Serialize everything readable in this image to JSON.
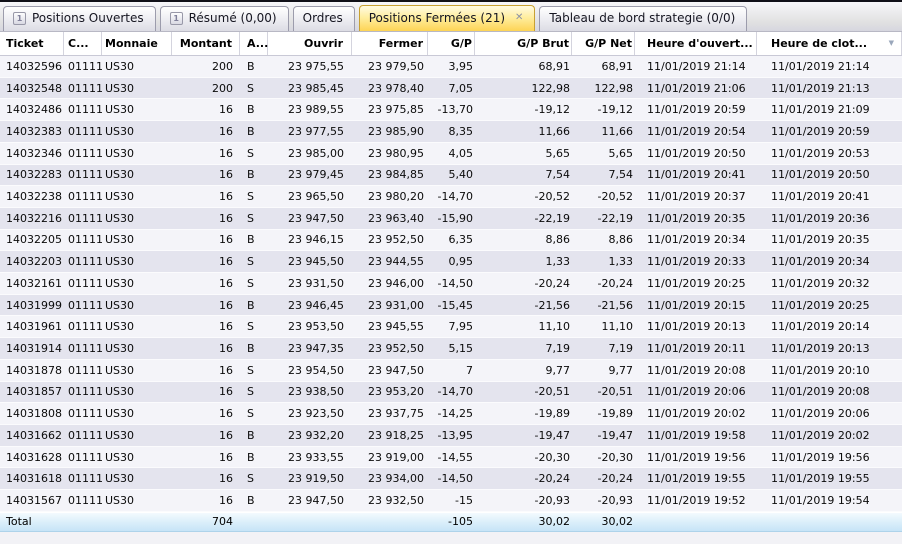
{
  "colors": {
    "active_tab": "#fdd455",
    "row_alt": "#e4e4ee",
    "total_row": "#c7e4f7",
    "top_strip": "#101018"
  },
  "tabs": [
    {
      "label": "Positions Ouvertes"
    },
    {
      "label": "Résumé (0,00)"
    },
    {
      "label": "Ordres"
    },
    {
      "label": "Positions Fermées (21)",
      "close": "✕"
    },
    {
      "label": "Tableau de bord strategie (0/0)"
    }
  ],
  "sort_icon": "▼",
  "tab_icon_glyph": "1",
  "table": {
    "columns": [
      {
        "key": "ticket",
        "label": "Ticket",
        "align": "left"
      },
      {
        "key": "compte",
        "label": "C...",
        "align": "left"
      },
      {
        "key": "monnaie",
        "label": "Monnaie",
        "align": "left"
      },
      {
        "key": "montant",
        "label": "Montant",
        "align": "right"
      },
      {
        "key": "achat_vente",
        "label": "A...",
        "align": "left"
      },
      {
        "key": "ouvrir",
        "label": "Ouvrir",
        "align": "right"
      },
      {
        "key": "fermer",
        "label": "Fermer",
        "align": "right"
      },
      {
        "key": "gp",
        "label": "G/P",
        "align": "right"
      },
      {
        "key": "gp_brut",
        "label": "G/P Brut",
        "align": "right"
      },
      {
        "key": "gp_net",
        "label": "G/P Net",
        "align": "right"
      },
      {
        "key": "heure_ouverture",
        "label": "Heure d'ouvert...",
        "align": "left"
      },
      {
        "key": "heure_cloture",
        "label": "Heure de clot...",
        "align": "left"
      }
    ],
    "rows": [
      [
        "14032596",
        "01111",
        "US30",
        "200",
        "B",
        "23 975,55",
        "23 979,50",
        "3,95",
        "68,91",
        "68,91",
        "11/01/2019 21:14",
        "11/01/2019 21:14"
      ],
      [
        "14032548",
        "01111",
        "US30",
        "200",
        "S",
        "23 985,45",
        "23 978,40",
        "7,05",
        "122,98",
        "122,98",
        "11/01/2019 21:06",
        "11/01/2019 21:13"
      ],
      [
        "14032486",
        "01111",
        "US30",
        "16",
        "B",
        "23 989,55",
        "23 975,85",
        "-13,70",
        "-19,12",
        "-19,12",
        "11/01/2019 20:59",
        "11/01/2019 21:09"
      ],
      [
        "14032383",
        "01111",
        "US30",
        "16",
        "B",
        "23 977,55",
        "23 985,90",
        "8,35",
        "11,66",
        "11,66",
        "11/01/2019 20:54",
        "11/01/2019 20:59"
      ],
      [
        "14032346",
        "01111",
        "US30",
        "16",
        "S",
        "23 985,00",
        "23 980,95",
        "4,05",
        "5,65",
        "5,65",
        "11/01/2019 20:50",
        "11/01/2019 20:53"
      ],
      [
        "14032283",
        "01111",
        "US30",
        "16",
        "B",
        "23 979,45",
        "23 984,85",
        "5,40",
        "7,54",
        "7,54",
        "11/01/2019 20:41",
        "11/01/2019 20:50"
      ],
      [
        "14032238",
        "01111",
        "US30",
        "16",
        "S",
        "23 965,50",
        "23 980,20",
        "-14,70",
        "-20,52",
        "-20,52",
        "11/01/2019 20:37",
        "11/01/2019 20:41"
      ],
      [
        "14032216",
        "01111",
        "US30",
        "16",
        "S",
        "23 947,50",
        "23 963,40",
        "-15,90",
        "-22,19",
        "-22,19",
        "11/01/2019 20:35",
        "11/01/2019 20:36"
      ],
      [
        "14032205",
        "01111",
        "US30",
        "16",
        "B",
        "23 946,15",
        "23 952,50",
        "6,35",
        "8,86",
        "8,86",
        "11/01/2019 20:34",
        "11/01/2019 20:35"
      ],
      [
        "14032203",
        "01111",
        "US30",
        "16",
        "S",
        "23 945,50",
        "23 944,55",
        "0,95",
        "1,33",
        "1,33",
        "11/01/2019 20:33",
        "11/01/2019 20:34"
      ],
      [
        "14032161",
        "01111",
        "US30",
        "16",
        "S",
        "23 931,50",
        "23 946,00",
        "-14,50",
        "-20,24",
        "-20,24",
        "11/01/2019 20:25",
        "11/01/2019 20:32"
      ],
      [
        "14031999",
        "01111",
        "US30",
        "16",
        "B",
        "23 946,45",
        "23 931,00",
        "-15,45",
        "-21,56",
        "-21,56",
        "11/01/2019 20:15",
        "11/01/2019 20:25"
      ],
      [
        "14031961",
        "01111",
        "US30",
        "16",
        "S",
        "23 953,50",
        "23 945,55",
        "7,95",
        "11,10",
        "11,10",
        "11/01/2019 20:13",
        "11/01/2019 20:14"
      ],
      [
        "14031914",
        "01111",
        "US30",
        "16",
        "B",
        "23 947,35",
        "23 952,50",
        "5,15",
        "7,19",
        "7,19",
        "11/01/2019 20:11",
        "11/01/2019 20:13"
      ],
      [
        "14031878",
        "01111",
        "US30",
        "16",
        "S",
        "23 954,50",
        "23 947,50",
        "7",
        "9,77",
        "9,77",
        "11/01/2019 20:08",
        "11/01/2019 20:10"
      ],
      [
        "14031857",
        "01111",
        "US30",
        "16",
        "S",
        "23 938,50",
        "23 953,20",
        "-14,70",
        "-20,51",
        "-20,51",
        "11/01/2019 20:06",
        "11/01/2019 20:08"
      ],
      [
        "14031808",
        "01111",
        "US30",
        "16",
        "S",
        "23 923,50",
        "23 937,75",
        "-14,25",
        "-19,89",
        "-19,89",
        "11/01/2019 20:02",
        "11/01/2019 20:06"
      ],
      [
        "14031662",
        "01111",
        "US30",
        "16",
        "B",
        "23 932,20",
        "23 918,25",
        "-13,95",
        "-19,47",
        "-19,47",
        "11/01/2019 19:58",
        "11/01/2019 20:02"
      ],
      [
        "14031628",
        "01111",
        "US30",
        "16",
        "B",
        "23 933,55",
        "23 919,00",
        "-14,55",
        "-20,30",
        "-20,30",
        "11/01/2019 19:56",
        "11/01/2019 19:56"
      ],
      [
        "14031618",
        "01111",
        "US30",
        "16",
        "S",
        "23 919,50",
        "23 934,00",
        "-14,50",
        "-20,24",
        "-20,24",
        "11/01/2019 19:55",
        "11/01/2019 19:55"
      ],
      [
        "14031567",
        "01111",
        "US30",
        "16",
        "B",
        "23 947,50",
        "23 932,50",
        "-15",
        "-20,93",
        "-20,93",
        "11/01/2019 19:52",
        "11/01/2019 19:54"
      ]
    ],
    "total_cells": [
      "Total",
      "",
      "",
      "704",
      "",
      "",
      "",
      "-105",
      "30,02",
      "30,02",
      "",
      ""
    ]
  }
}
